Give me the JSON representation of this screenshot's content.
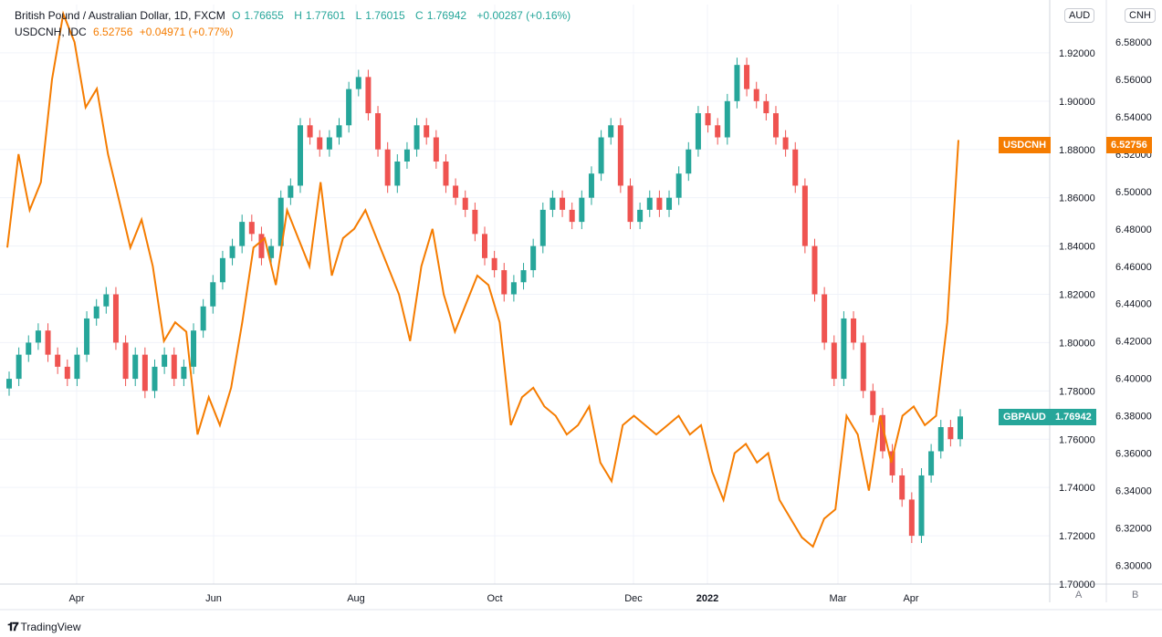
{
  "legend": {
    "main": {
      "title": "British Pound / Australian Dollar, 1D, FXCM",
      "o_label": "O",
      "o": "1.76655",
      "h_label": "H",
      "h": "1.77601",
      "l_label": "L",
      "l": "1.76015",
      "c_label": "C",
      "c": "1.76942",
      "change": "+0.00287 (+0.16%)"
    },
    "compare": {
      "title": "USDCNH, IDC",
      "value": "6.52756",
      "change": "+0.04971 (+0.77%)"
    }
  },
  "scales": {
    "left_badge": "AUD",
    "right_badge": "CNH",
    "bottom_left_btn": "A",
    "bottom_right_btn": "B"
  },
  "tags": {
    "usdcnh_name": "USDCNH",
    "usdcnh_value": "6.52756",
    "gbpaud_name": "GBPAUD",
    "gbpaud_value": "1.76942"
  },
  "brand": {
    "name": "TradingView",
    "icon": "tradingview-logo-icon"
  },
  "colors": {
    "up": "#26a69a",
    "down": "#ef5350",
    "compare": "#f57c00",
    "grid": "#f0f3fa"
  },
  "chart_data": {
    "type": "candlestick+line",
    "x_ticks": [
      "Apr",
      "Jun",
      "Aug",
      "Oct",
      "Dec",
      "2022",
      "Mar",
      "Apr"
    ],
    "y_axis_aud": {
      "ticks": [
        "1.70000",
        "1.72000",
        "1.74000",
        "1.76000",
        "1.78000",
        "1.80000",
        "1.82000",
        "1.84000",
        "1.86000",
        "1.88000",
        "1.90000",
        "1.92000"
      ],
      "range": [
        1.7,
        1.94
      ]
    },
    "y_axis_cnh": {
      "ticks": [
        "6.30000",
        "6.32000",
        "6.34000",
        "6.36000",
        "6.38000",
        "6.40000",
        "6.42000",
        "6.44000",
        "6.46000",
        "6.48000",
        "6.50000",
        "6.52000",
        "6.54000",
        "6.56000",
        "6.58000"
      ],
      "range": [
        6.29,
        6.6
      ]
    },
    "gbpaud_closes": [
      1.785,
      1.795,
      1.8,
      1.805,
      1.795,
      1.79,
      1.785,
      1.795,
      1.81,
      1.815,
      1.82,
      1.8,
      1.785,
      1.795,
      1.78,
      1.79,
      1.795,
      1.785,
      1.79,
      1.805,
      1.815,
      1.825,
      1.835,
      1.84,
      1.85,
      1.845,
      1.835,
      1.84,
      1.86,
      1.865,
      1.89,
      1.885,
      1.88,
      1.885,
      1.89,
      1.905,
      1.91,
      1.895,
      1.88,
      1.865,
      1.875,
      1.88,
      1.89,
      1.885,
      1.875,
      1.865,
      1.86,
      1.855,
      1.845,
      1.835,
      1.83,
      1.82,
      1.825,
      1.83,
      1.84,
      1.855,
      1.86,
      1.855,
      1.85,
      1.86,
      1.87,
      1.885,
      1.89,
      1.865,
      1.85,
      1.855,
      1.86,
      1.855,
      1.86,
      1.87,
      1.88,
      1.895,
      1.89,
      1.885,
      1.9,
      1.915,
      1.905,
      1.9,
      1.895,
      1.885,
      1.88,
      1.865,
      1.84,
      1.82,
      1.8,
      1.785,
      1.81,
      1.8,
      1.78,
      1.77,
      1.755,
      1.745,
      1.735,
      1.72,
      1.745,
      1.755,
      1.765,
      1.76,
      1.76942
    ],
    "usdcnh_closes": [
      6.47,
      6.52,
      6.49,
      6.505,
      6.56,
      6.595,
      6.58,
      6.545,
      6.555,
      6.52,
      6.495,
      6.47,
      6.485,
      6.46,
      6.42,
      6.43,
      6.425,
      6.37,
      6.39,
      6.375,
      6.395,
      6.43,
      6.47,
      6.475,
      6.45,
      6.49,
      6.475,
      6.46,
      6.505,
      6.455,
      6.475,
      6.48,
      6.49,
      6.475,
      6.46,
      6.445,
      6.42,
      6.46,
      6.48,
      6.445,
      6.425,
      6.44,
      6.455,
      6.45,
      6.43,
      6.375,
      6.39,
      6.395,
      6.385,
      6.38,
      6.37,
      6.375,
      6.385,
      6.355,
      6.345,
      6.375,
      6.38,
      6.375,
      6.37,
      6.375,
      6.38,
      6.37,
      6.375,
      6.35,
      6.335,
      6.36,
      6.365,
      6.355,
      6.36,
      6.335,
      6.325,
      6.315,
      6.31,
      6.325,
      6.33,
      6.38,
      6.37,
      6.34,
      6.38,
      6.355,
      6.38,
      6.385,
      6.375,
      6.38,
      6.43,
      6.52756
    ]
  }
}
